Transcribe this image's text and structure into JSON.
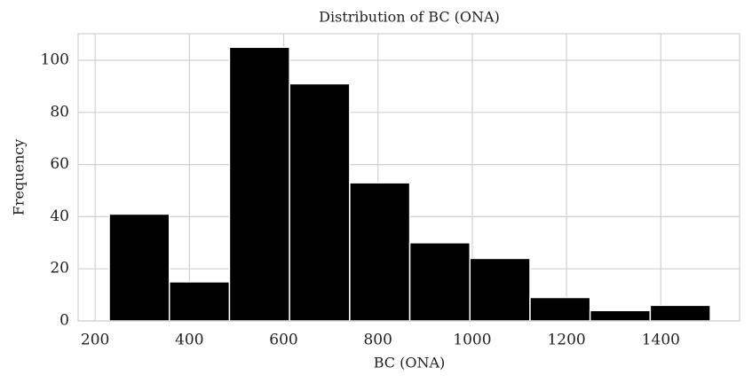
{
  "chart_data": {
    "type": "histogram",
    "title": "Distribution of BC (ONA)",
    "x_label": "BC (ONA)",
    "y_label": "Frequency",
    "bins": [
      230,
      357.5,
      485,
      612.5,
      740,
      867.5,
      995,
      1122.5,
      1250,
      1377.5,
      1505
    ],
    "values": [
      41,
      15,
      105,
      91,
      53,
      30,
      24,
      9,
      4,
      6
    ],
    "color": "#000000",
    "xlim": [
      164,
      1567
    ],
    "ylim": [
      0,
      110.2
    ],
    "xticks": [
      200,
      400,
      600,
      800,
      1000,
      1200,
      1400
    ],
    "yticks": [
      0,
      20,
      40,
      60,
      80,
      100
    ],
    "grid": true
  }
}
